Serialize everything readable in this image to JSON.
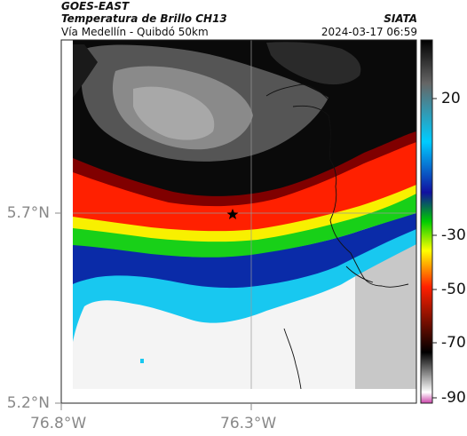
{
  "header": {
    "satellite": "GOES-EAST",
    "product": "Temperatura de Brillo CH13",
    "region": "Vía Medellín - Quibdó 50km",
    "agency": "SIATA",
    "datetime": "2024-03-17 06:59"
  },
  "axes": {
    "y_ticks": [
      "5.7°N",
      "5.2°N"
    ],
    "x_ticks": [
      "76.8°W",
      "76.3°W"
    ]
  },
  "colorbar": {
    "ticks": [
      "20",
      "-30",
      "-50",
      "-70",
      "-90"
    ],
    "palette": [
      "#cc44aa",
      "#ffffff",
      "#000000",
      "#ff2000",
      "#ffff00",
      "#00cc00",
      "#1010a0",
      "#00ccff",
      "#666666",
      "#000000"
    ]
  },
  "map": {
    "marker": "star-icon",
    "colors": {
      "clear_sky_gray": "#c8c8c8",
      "white_cloud": "#f4f4f4",
      "cyan": "#18c8f0",
      "blue": "#0a2ba8",
      "green": "#18d018",
      "yellow": "#f8f000",
      "red": "#ff2000",
      "dark_red": "#800000",
      "black": "#0a0a0a",
      "dark_gray": "#555555"
    }
  }
}
